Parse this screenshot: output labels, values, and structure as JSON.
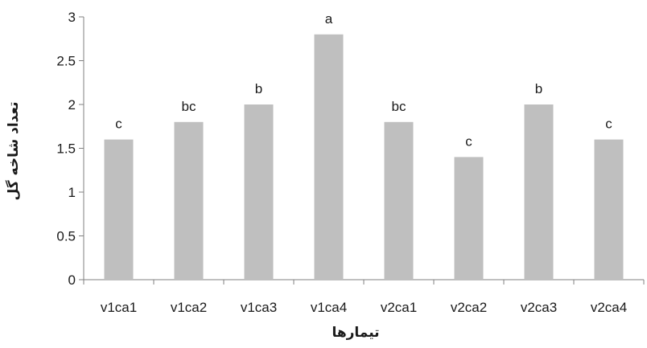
{
  "chart_data": {
    "type": "bar",
    "categories": [
      "v1ca1",
      "v1ca2",
      "v1ca3",
      "v1ca4",
      "v2ca1",
      "v2ca2",
      "v2ca3",
      "v2ca4"
    ],
    "values": [
      1.6,
      1.8,
      2.0,
      2.8,
      1.8,
      1.4,
      2.0,
      1.6
    ],
    "letters": [
      "c",
      "bc",
      "b",
      "a",
      "bc",
      "c",
      "b",
      "c"
    ],
    "xlabel": "تیمارها",
    "ylabel": "تعداد شاخه گل",
    "ylim": [
      0,
      3
    ],
    "yticks": [
      0,
      0.5,
      1,
      1.5,
      2,
      2.5,
      3
    ],
    "ytick_labels": [
      "0",
      "0.5",
      "1",
      "1.5",
      "2",
      "2.5",
      "3"
    ],
    "grid": false,
    "bar_color": "#bfbfbf",
    "axis_color": "#808080"
  }
}
